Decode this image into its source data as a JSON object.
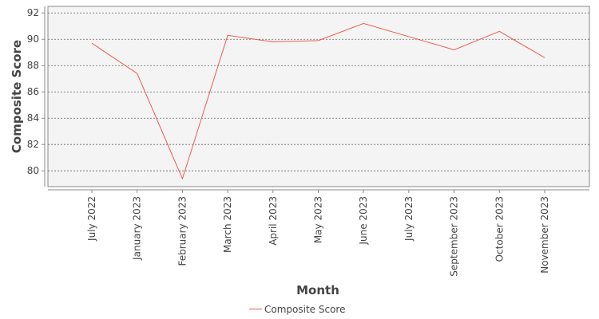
{
  "chart_data": {
    "type": "line",
    "categories": [
      "July 2022",
      "January 2023",
      "February 2023",
      "March 2023",
      "April 2023",
      "May 2023",
      "June 2023",
      "July 2023",
      "September 2023",
      "October 2023",
      "November 2023"
    ],
    "series": [
      {
        "name": "Composite Score",
        "color": "#f05a50",
        "values": [
          89.7,
          87.4,
          79.4,
          90.3,
          89.8,
          89.9,
          91.2,
          90.2,
          89.2,
          90.6,
          88.6
        ]
      }
    ],
    "xlabel": "Month",
    "ylabel": "Composite Score",
    "ylim": [
      78.8,
      92.5
    ],
    "yticks": [
      80,
      82,
      84,
      86,
      88,
      90,
      92
    ],
    "grid": true,
    "legend": "bottom",
    "colors": {
      "plot_background": "#f4f4f4",
      "gridline": "#666666",
      "axis": "#888888"
    }
  }
}
